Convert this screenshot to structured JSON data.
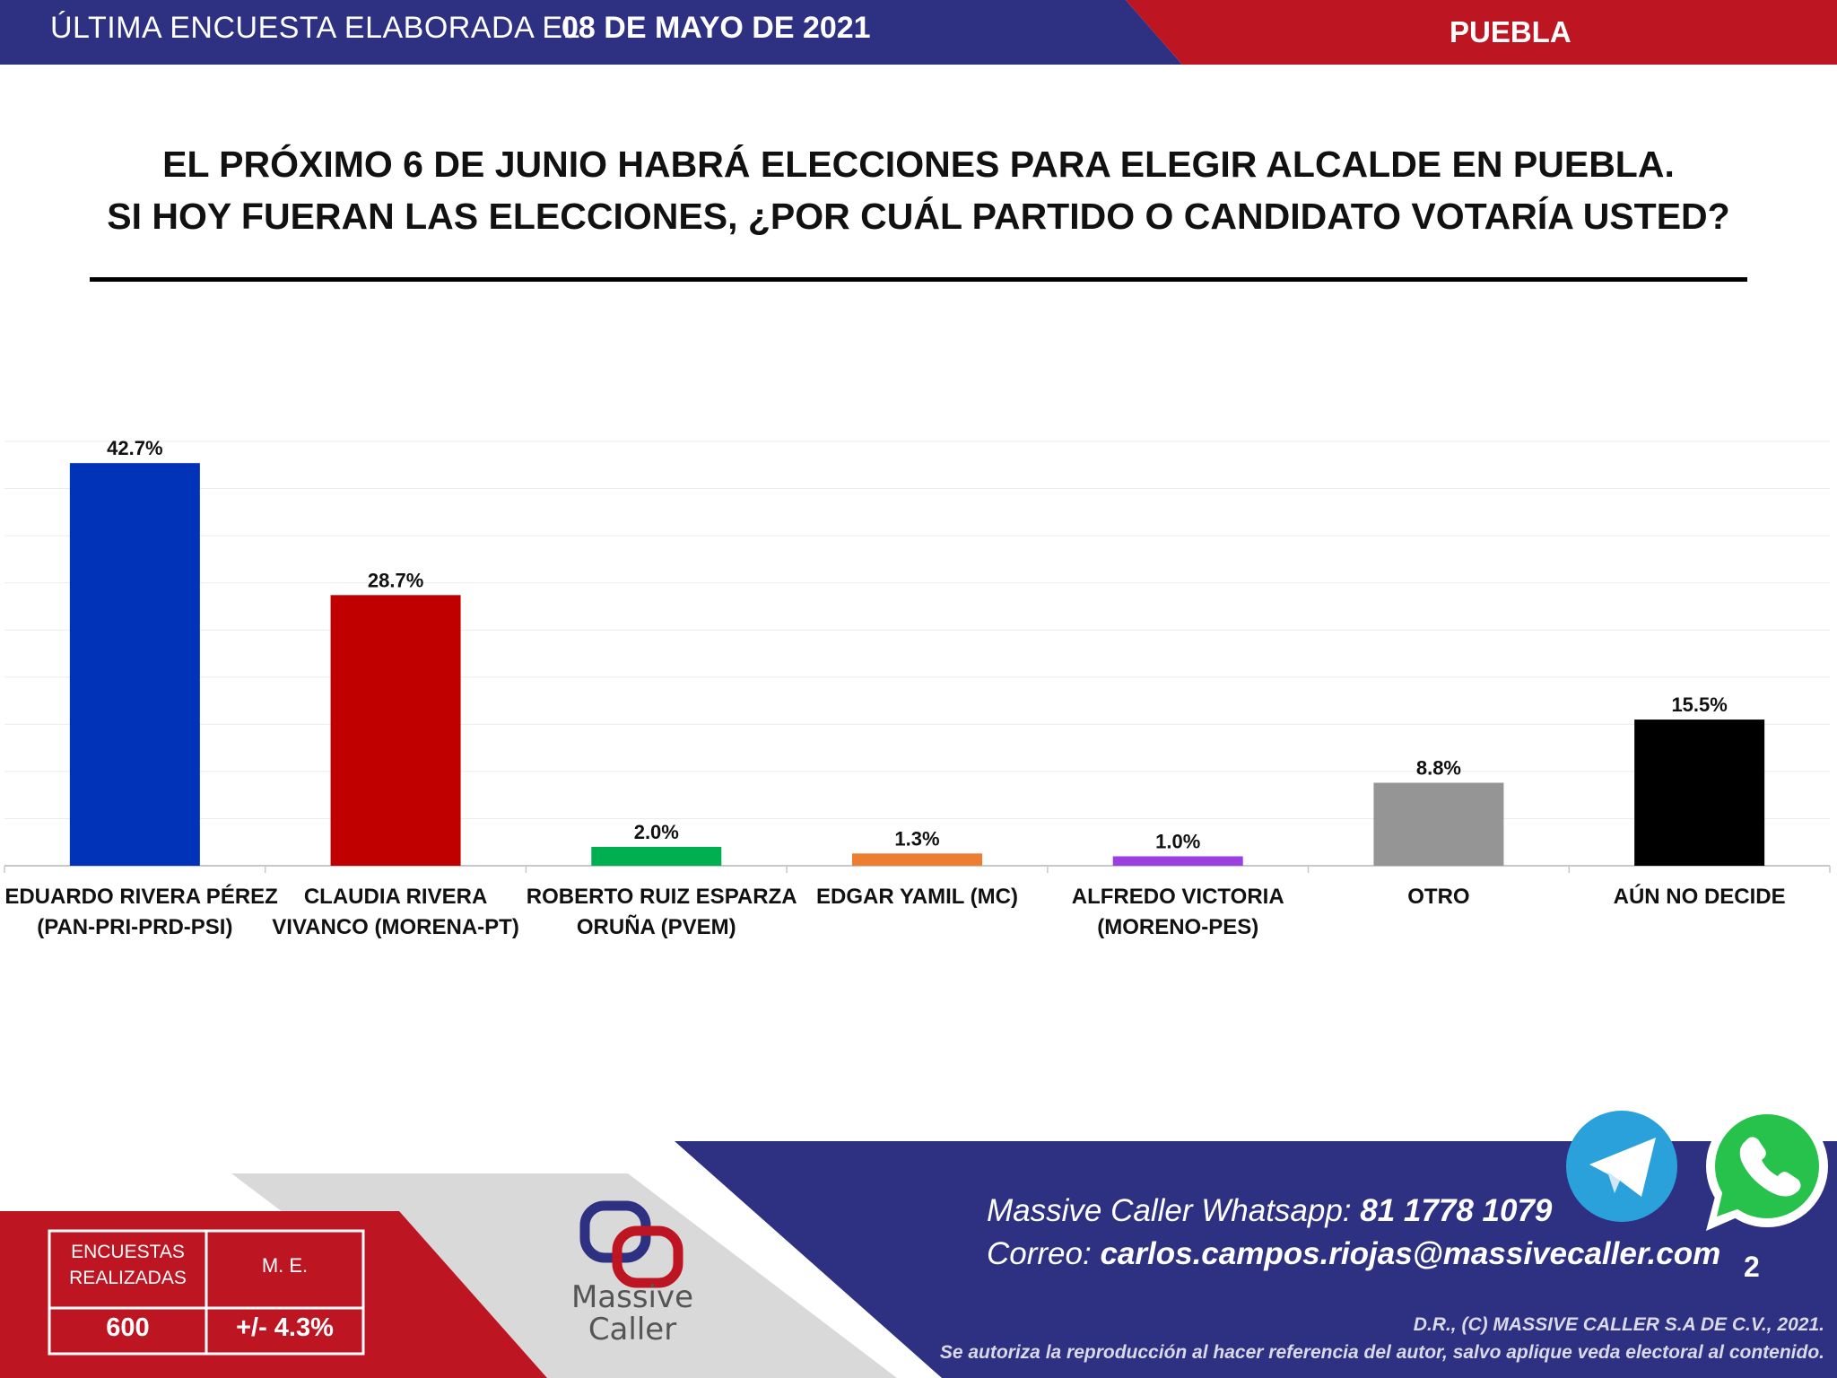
{
  "header": {
    "prefix": "ÚLTIMA ENCUESTA ELABORADA EL",
    "date": "08 DE MAYO DE 2021",
    "region": "PUEBLA",
    "colors": {
      "blue": "#2E3082",
      "red": "#BE1522"
    }
  },
  "question": {
    "line1": "EL PRÓXIMO 6 DE JUNIO HABRÁ ELECCIONES PARA ELEGIR ALCALDE EN PUEBLA.",
    "line2": "SI HOY FUERAN LAS ELECCIONES, ¿POR CUÁL PARTIDO O CANDIDATO VOTARÍA USTED?"
  },
  "chart_data": {
    "type": "bar",
    "categories": [
      [
        "EDUARDO RIVERA PÉREZ",
        "(PAN-PRI-PRD-PSI)"
      ],
      [
        "CLAUDIA RIVERA",
        "VIVANCO (MORENA-PT)"
      ],
      [
        "ROBERTO RUIZ ESPARZA",
        "ORUÑA (PVEM)"
      ],
      [
        "EDGAR YAMIL (MC)"
      ],
      [
        "ALFREDO VICTORIA",
        "(MORENO-PES)"
      ],
      [
        "OTRO"
      ],
      [
        "AÚN NO DECIDE"
      ]
    ],
    "values": [
      42.7,
      28.7,
      2.0,
      1.3,
      1.0,
      8.8,
      15.5
    ],
    "value_labels": [
      "42.7%",
      "28.7%",
      "2.0%",
      "1.3%",
      "1.0%",
      "8.8%",
      "15.5%"
    ],
    "colors": [
      "#0033B8",
      "#C00000",
      "#00B050",
      "#ED7D31",
      "#9B40E0",
      "#959595",
      "#000000"
    ],
    "ylim": [
      0,
      45
    ],
    "grid": true
  },
  "footer": {
    "surveys_label": [
      "ENCUESTAS",
      "REALIZADAS"
    ],
    "surveys_value": "600",
    "margin_label": "M. E.",
    "margin_value": "+/- 4.3%",
    "logo_line1": "Massive",
    "logo_line2": "Caller",
    "whatsapp_label": "Massive Caller Whatsapp:",
    "whatsapp_value": "81 1778 1079",
    "email_label": "Correo:",
    "email_value": "carlos.campos.riojas@massivecaller.com",
    "page_number": "2",
    "copyright1": "D.R., (C) MASSIVE CALLER S.A DE C.V., 2021.",
    "copyright2": "Se autoriza la reproducción al hacer referencia del autor, salvo aplique veda electoral al contenido.",
    "icons": [
      "telegram-icon",
      "whatsapp-icon",
      "massive-caller-logo"
    ]
  }
}
